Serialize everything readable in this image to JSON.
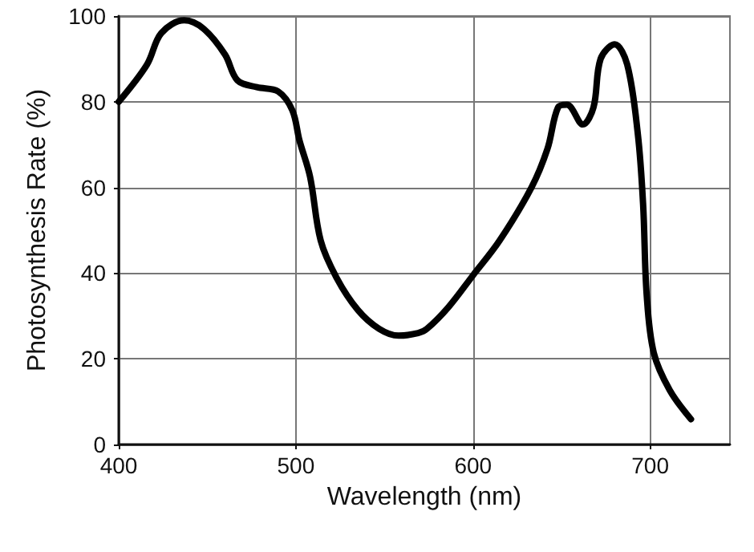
{
  "chart_data": {
    "type": "line",
    "xlabel": "Wavelength (nm)",
    "ylabel": "Photosynthesis Rate (%)",
    "color": "#000000",
    "marker": "none",
    "line_style": "solid",
    "grid": true,
    "x": [
      400,
      416,
      424,
      437,
      448,
      460,
      467,
      478,
      490,
      498,
      502,
      508,
      514,
      523,
      535,
      547,
      558,
      569,
      574,
      586,
      600,
      615,
      633,
      642,
      648,
      653,
      662,
      668,
      672,
      680,
      687,
      693,
      696,
      698,
      702,
      711,
      723
    ],
    "values": [
      80,
      88.7,
      96,
      99,
      97,
      91,
      85,
      83.4,
      82.4,
      78,
      71,
      62.5,
      47.6,
      38.9,
      31.4,
      27,
      25.4,
      26,
      27,
      32,
      39.5,
      47.6,
      60,
      69,
      78.7,
      79.3,
      74.7,
      78.7,
      90,
      93.4,
      88.7,
      72.5,
      56,
      35,
      21.4,
      12.7,
      5.9
    ],
    "xlim": [
      400,
      745
    ],
    "xticks": [
      400,
      500,
      600,
      700
    ],
    "ylim": [
      0,
      100
    ],
    "yticks": [
      0,
      20,
      40,
      60,
      80,
      100
    ]
  }
}
